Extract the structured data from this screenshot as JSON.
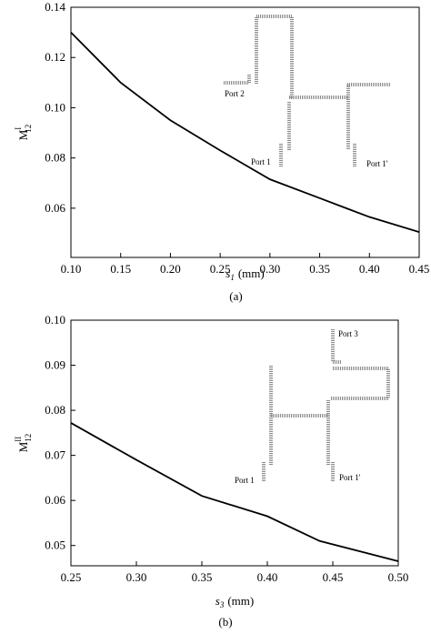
{
  "chart_data": [
    {
      "type": "line",
      "caption": "(a)",
      "y_label": "M",
      "y_label_sup": "I",
      "y_label_sub": "12",
      "x_label": "s",
      "x_label_sub": "1",
      "x_label_unit": "(mm)",
      "x": [
        0.1,
        0.15,
        0.2,
        0.25,
        0.3,
        0.35,
        0.4,
        0.45
      ],
      "values": [
        0.13,
        0.11,
        0.095,
        0.083,
        0.0715,
        0.064,
        0.0565,
        0.0505
      ],
      "color": "#000000",
      "xlim": [
        0.1,
        0.45
      ],
      "xticks": [
        {
          "value": 0.1,
          "label": "0.10"
        },
        0.15,
        {
          "value": 0.2,
          "label": "0.20"
        },
        0.25,
        {
          "value": 0.3,
          "label": "0.30"
        },
        0.35,
        {
          "value": 0.4,
          "label": "0.40"
        },
        0.45
      ],
      "ylim": [
        0.0404,
        0.14
      ],
      "yticks": [
        0.06,
        0.08,
        {
          "value": 0.1,
          "label": "0.10"
        },
        0.12,
        0.14
      ],
      "inset_labels": [
        "Port 2",
        "Port 1",
        "Port 1'"
      ]
    },
    {
      "type": "line",
      "caption": "(b)",
      "y_label": "M",
      "y_label_sup": "II",
      "y_label_sub": "12",
      "x_label": "s",
      "x_label_sub": "3",
      "x_label_unit": "(mm)",
      "x": [
        0.25,
        0.3,
        0.35,
        0.4,
        0.44,
        0.5
      ],
      "values": [
        0.0772,
        0.069,
        0.061,
        0.0565,
        0.051,
        0.0465
      ],
      "color": "#000000",
      "xlim": [
        0.25,
        0.5
      ],
      "xticks": [
        0.25,
        {
          "value": 0.3,
          "label": "0.30"
        },
        0.35,
        {
          "value": 0.4,
          "label": "0.40"
        },
        0.45,
        {
          "value": 0.5,
          "label": "0.50"
        }
      ],
      "ylim": [
        0.0455,
        0.1
      ],
      "yticks": [
        0.05,
        0.06,
        0.07,
        0.08,
        0.09,
        {
          "value": 0.1,
          "label": "0.10"
        }
      ],
      "inset_labels": [
        "Port 1",
        "Port 1'",
        "Port 3"
      ]
    }
  ]
}
